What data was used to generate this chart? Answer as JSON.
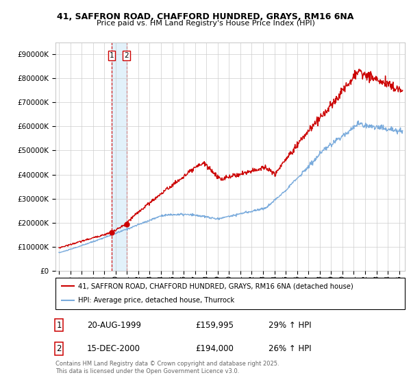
{
  "title1": "41, SAFFRON ROAD, CHAFFORD HUNDRED, GRAYS, RM16 6NA",
  "title2": "Price paid vs. HM Land Registry's House Price Index (HPI)",
  "legend1": "41, SAFFRON ROAD, CHAFFORD HUNDRED, GRAYS, RM16 6NA (detached house)",
  "legend2": "HPI: Average price, detached house, Thurrock",
  "sale1_date": "20-AUG-1999",
  "sale1_price": "£159,995",
  "sale1_hpi": "29% ↑ HPI",
  "sale2_date": "15-DEC-2000",
  "sale2_price": "£194,000",
  "sale2_hpi": "26% ↑ HPI",
  "footer": "Contains HM Land Registry data © Crown copyright and database right 2025.\nThis data is licensed under the Open Government Licence v3.0.",
  "line_color_red": "#cc0000",
  "line_color_blue": "#7aabdc",
  "background_color": "#ffffff",
  "grid_color": "#cccccc",
  "ylim": [
    0,
    950000
  ],
  "yticks": [
    0,
    100000,
    200000,
    300000,
    400000,
    500000,
    600000,
    700000,
    800000,
    900000
  ],
  "xlim_start": 1994.7,
  "xlim_end": 2025.5,
  "sale1_x": 1999.64,
  "sale2_x": 2000.96,
  "sale1_y": 159995,
  "sale2_y": 194000
}
